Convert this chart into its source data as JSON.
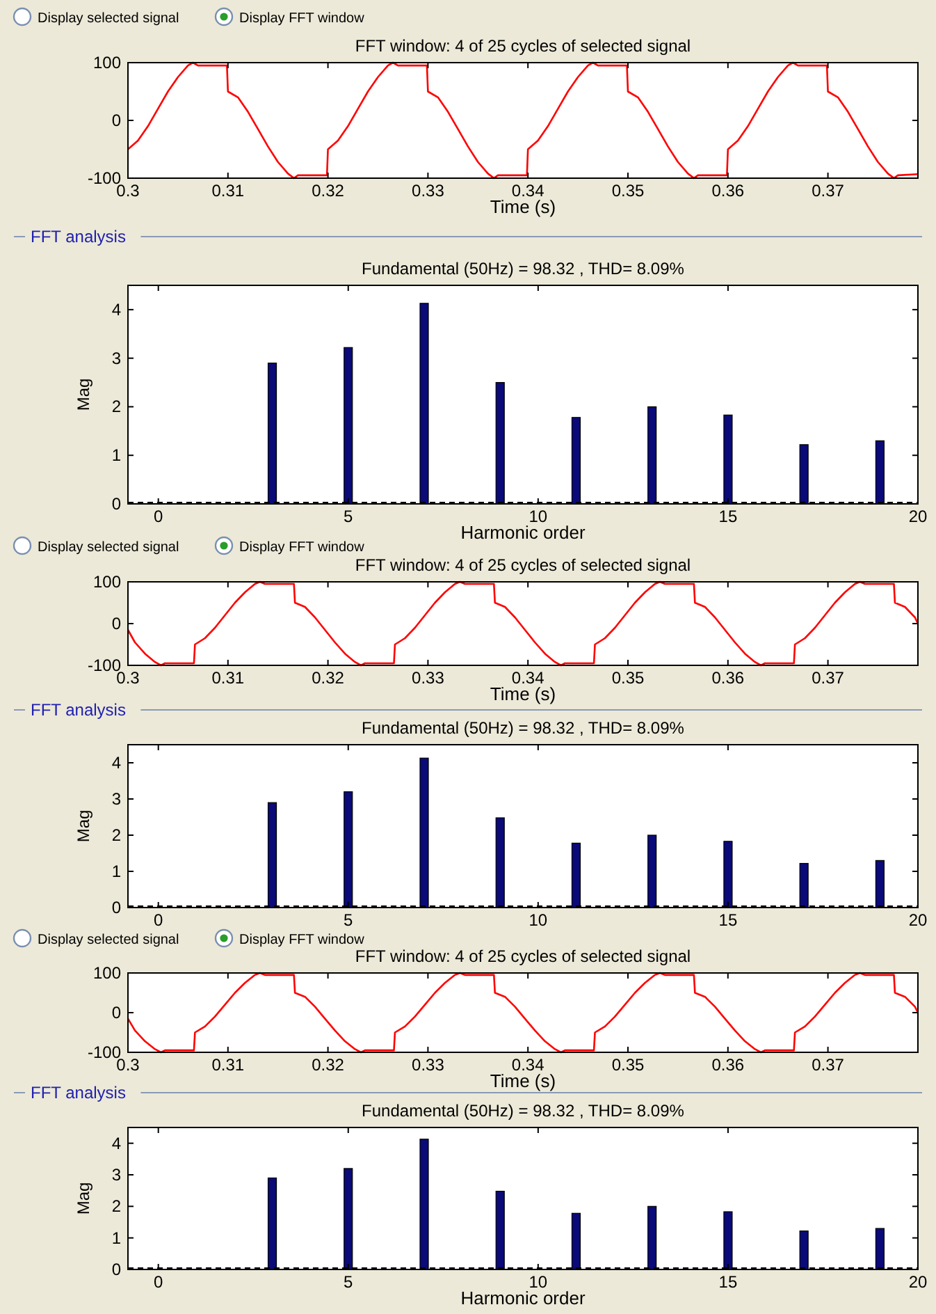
{
  "chart_data": [
    {
      "type": "line",
      "title": "FFT window: 4 of 25 cycles of selected signal",
      "xlabel": "Time (s)",
      "annotations": [
        "Display selected signal",
        "Display FFT window"
      ],
      "xlim": [
        0.3,
        0.379
      ],
      "ylim": [
        -100,
        100
      ],
      "xticks": [
        0.3,
        0.31,
        0.32,
        0.33,
        0.34,
        0.35,
        0.36,
        0.37
      ],
      "yticks": [
        -100,
        0,
        100
      ],
      "grid": false,
      "marker": "none",
      "line_style": "solid",
      "series": [
        {
          "color": "#ff0000",
          "x": [
            0.3,
            0.301,
            0.302,
            0.303,
            0.304,
            0.305,
            0.306,
            0.3065,
            0.307,
            0.3099,
            0.31,
            0.311,
            0.312,
            0.313,
            0.314,
            0.315,
            0.316,
            0.3166,
            0.317,
            0.3199,
            0.32,
            0.321,
            0.322,
            0.323,
            0.324,
            0.325,
            0.326,
            0.3265,
            0.327,
            0.3299,
            0.33,
            0.331,
            0.332,
            0.333,
            0.334,
            0.335,
            0.336,
            0.3366,
            0.337,
            0.3399,
            0.34,
            0.341,
            0.342,
            0.343,
            0.344,
            0.345,
            0.346,
            0.3465,
            0.347,
            0.3499,
            0.35,
            0.351,
            0.352,
            0.353,
            0.354,
            0.355,
            0.356,
            0.3566,
            0.357,
            0.3599,
            0.36,
            0.361,
            0.362,
            0.363,
            0.364,
            0.365,
            0.366,
            0.3665,
            0.367,
            0.3699,
            0.37,
            0.371,
            0.372,
            0.373,
            0.374,
            0.375,
            0.376,
            0.3766,
            0.377,
            0.379
          ],
          "values": [
            -50,
            -35,
            -10,
            20,
            50,
            75,
            95,
            100,
            95,
            95,
            50,
            40,
            15,
            -15,
            -45,
            -72,
            -92,
            -100,
            -95,
            -95,
            -50,
            -35,
            -10,
            20,
            50,
            75,
            95,
            100,
            95,
            95,
            50,
            40,
            15,
            -15,
            -45,
            -72,
            -92,
            -100,
            -95,
            -95,
            -50,
            -35,
            -10,
            20,
            50,
            75,
            95,
            100,
            95,
            95,
            50,
            40,
            15,
            -15,
            -45,
            -72,
            -92,
            -100,
            -95,
            -95,
            -50,
            -35,
            -10,
            20,
            50,
            75,
            95,
            100,
            95,
            95,
            50,
            40,
            15,
            -15,
            -45,
            -72,
            -92,
            -100,
            -95,
            -93
          ]
        }
      ]
    },
    {
      "type": "bar",
      "title": "Fundamental (50Hz) = 98.32 , THD= 8.09%",
      "xlabel": "Harmonic order",
      "ylabel": "Mag",
      "annotations": [
        "FFT analysis"
      ],
      "xlim": [
        -0.8,
        20
      ],
      "ylim": [
        0,
        4.5
      ],
      "xticks": [
        0,
        5,
        10,
        15,
        20
      ],
      "yticks": [
        0,
        1,
        2,
        3,
        4
      ],
      "grid": false,
      "ref_lines": [
        {
          "axis": "y",
          "value": 0,
          "line_style": "dashed",
          "color": "#000000"
        }
      ],
      "series": [
        {
          "color": "#0a0a78",
          "x": [
            3,
            5,
            7,
            9,
            11,
            13,
            15,
            17,
            19
          ],
          "values": [
            2.9,
            3.22,
            4.13,
            2.5,
            1.78,
            2.0,
            1.83,
            1.22,
            1.3
          ]
        }
      ]
    },
    {
      "type": "line",
      "title": "FFT window: 4 of 25 cycles of selected signal",
      "xlabel": "Time (s)",
      "annotations": [
        "Display selected signal",
        "Display FFT window"
      ],
      "xlim": [
        0.3,
        0.379
      ],
      "ylim": [
        -100,
        100
      ],
      "xticks": [
        0.3,
        0.31,
        0.32,
        0.33,
        0.34,
        0.35,
        0.36,
        0.37
      ],
      "yticks": [
        -100,
        0,
        100
      ],
      "grid": false,
      "marker": "none",
      "line_style": "solid",
      "series": [
        {
          "color": "#ff0000",
          "x": [
            0.3,
            0.3007,
            0.3017,
            0.3027,
            0.3033,
            0.3037,
            0.3066,
            0.3067,
            0.3077,
            0.3087,
            0.3097,
            0.3107,
            0.3117,
            0.3127,
            0.3132,
            0.3137,
            0.3166,
            0.3167,
            0.3177,
            0.3187,
            0.3197,
            0.3207,
            0.3217,
            0.3227,
            0.3233,
            0.3237,
            0.3266,
            0.3267,
            0.3277,
            0.3287,
            0.3297,
            0.3307,
            0.3317,
            0.3327,
            0.3332,
            0.3337,
            0.3366,
            0.3367,
            0.3377,
            0.3387,
            0.3397,
            0.3407,
            0.3417,
            0.3427,
            0.3433,
            0.3437,
            0.3466,
            0.3467,
            0.3477,
            0.3487,
            0.3497,
            0.3507,
            0.3517,
            0.3527,
            0.3532,
            0.3537,
            0.3566,
            0.3567,
            0.3577,
            0.3587,
            0.3597,
            0.3607,
            0.3617,
            0.3627,
            0.3633,
            0.3637,
            0.3666,
            0.3667,
            0.3677,
            0.3687,
            0.3697,
            0.3707,
            0.3717,
            0.3727,
            0.3732,
            0.3737,
            0.3766,
            0.3767,
            0.3777,
            0.3787,
            0.379
          ],
          "values": [
            -15,
            -45,
            -72,
            -92,
            -100,
            -95,
            -95,
            -50,
            -35,
            -10,
            20,
            50,
            75,
            95,
            100,
            95,
            95,
            50,
            40,
            15,
            -15,
            -45,
            -72,
            -92,
            -100,
            -95,
            -95,
            -50,
            -35,
            -10,
            20,
            50,
            75,
            95,
            100,
            95,
            95,
            50,
            40,
            15,
            -15,
            -45,
            -72,
            -92,
            -100,
            -95,
            -95,
            -50,
            -35,
            -10,
            20,
            50,
            75,
            95,
            100,
            95,
            95,
            50,
            40,
            15,
            -15,
            -45,
            -72,
            -92,
            -100,
            -95,
            -95,
            -50,
            -35,
            -10,
            20,
            50,
            75,
            95,
            100,
            95,
            95,
            50,
            40,
            15,
            0
          ]
        }
      ]
    },
    {
      "type": "bar",
      "title": "Fundamental (50Hz) = 98.32 , THD= 8.09%",
      "ylabel": "Mag",
      "annotations": [
        "FFT analysis"
      ],
      "xlim": [
        -0.8,
        20
      ],
      "ylim": [
        0,
        4.5
      ],
      "xticks": [
        0,
        5,
        10,
        15,
        20
      ],
      "yticks": [
        0,
        1,
        2,
        3,
        4
      ],
      "grid": false,
      "ref_lines": [
        {
          "axis": "y",
          "value": 0,
          "line_style": "dashed",
          "color": "#000000"
        }
      ],
      "series": [
        {
          "color": "#0a0a78",
          "x": [
            3,
            5,
            7,
            9,
            11,
            13,
            15,
            17,
            19
          ],
          "values": [
            2.9,
            3.2,
            4.13,
            2.48,
            1.78,
            2.0,
            1.83,
            1.22,
            1.3
          ]
        }
      ]
    },
    {
      "type": "line",
      "title": "FFT window: 4 of 25 cycles of selected signal",
      "xlabel": "Time (s)",
      "annotations": [
        "Display selected signal",
        "Display FFT window"
      ],
      "xlim": [
        0.3,
        0.379
      ],
      "ylim": [
        -100,
        100
      ],
      "xticks": [
        0.3,
        0.31,
        0.32,
        0.33,
        0.34,
        0.35,
        0.36,
        0.37
      ],
      "yticks": [
        -100,
        0,
        100
      ],
      "grid": false,
      "marker": "none",
      "line_style": "solid",
      "series": [
        {
          "color": "#ff0000",
          "x": [
            0.3,
            0.3007,
            0.3017,
            0.3027,
            0.3033,
            0.3037,
            0.3066,
            0.3067,
            0.3077,
            0.3087,
            0.3097,
            0.3107,
            0.3117,
            0.3127,
            0.3132,
            0.3137,
            0.3166,
            0.3167,
            0.3177,
            0.3187,
            0.3197,
            0.3207,
            0.3217,
            0.3227,
            0.3233,
            0.3237,
            0.3266,
            0.3267,
            0.3277,
            0.3287,
            0.3297,
            0.3307,
            0.3317,
            0.3327,
            0.3332,
            0.3337,
            0.3366,
            0.3367,
            0.3377,
            0.3387,
            0.3397,
            0.3407,
            0.3417,
            0.3427,
            0.3433,
            0.3437,
            0.3466,
            0.3467,
            0.3477,
            0.3487,
            0.3497,
            0.3507,
            0.3517,
            0.3527,
            0.3532,
            0.3537,
            0.3566,
            0.3567,
            0.3577,
            0.3587,
            0.3597,
            0.3607,
            0.3617,
            0.3627,
            0.3633,
            0.3637,
            0.3666,
            0.3667,
            0.3677,
            0.3687,
            0.3697,
            0.3707,
            0.3717,
            0.3727,
            0.3732,
            0.3737,
            0.3766,
            0.3767,
            0.3777,
            0.3787,
            0.379
          ],
          "values": [
            -15,
            -45,
            -72,
            -92,
            -100,
            -95,
            -95,
            -50,
            -35,
            -10,
            20,
            50,
            75,
            95,
            100,
            95,
            95,
            50,
            40,
            15,
            -15,
            -45,
            -72,
            -92,
            -100,
            -95,
            -95,
            -50,
            -35,
            -10,
            20,
            50,
            75,
            95,
            100,
            95,
            95,
            50,
            40,
            15,
            -15,
            -45,
            -72,
            -92,
            -100,
            -95,
            -95,
            -50,
            -35,
            -10,
            20,
            50,
            75,
            95,
            100,
            95,
            95,
            50,
            40,
            15,
            -15,
            -45,
            -72,
            -92,
            -100,
            -95,
            -95,
            -50,
            -35,
            -10,
            20,
            50,
            75,
            95,
            100,
            95,
            95,
            50,
            40,
            15,
            0
          ]
        }
      ]
    },
    {
      "type": "bar",
      "title": "Fundamental (50Hz) = 98.32 , THD= 8.09%",
      "xlabel": "Harmonic order",
      "ylabel": "Mag",
      "annotations": [
        "FFT analysis"
      ],
      "xlim": [
        -0.8,
        20
      ],
      "ylim": [
        0,
        4.5
      ],
      "xticks": [
        0,
        5,
        10,
        15,
        20
      ],
      "yticks": [
        0,
        1,
        2,
        3,
        4
      ],
      "grid": false,
      "ref_lines": [
        {
          "axis": "y",
          "value": 0,
          "line_style": "dashed",
          "color": "#000000"
        }
      ],
      "series": [
        {
          "color": "#0a0a78",
          "x": [
            3,
            5,
            7,
            9,
            11,
            13,
            15,
            17,
            19
          ],
          "values": [
            2.9,
            3.2,
            4.13,
            2.48,
            1.78,
            2.0,
            1.83,
            1.22,
            1.3
          ]
        }
      ]
    }
  ]
}
